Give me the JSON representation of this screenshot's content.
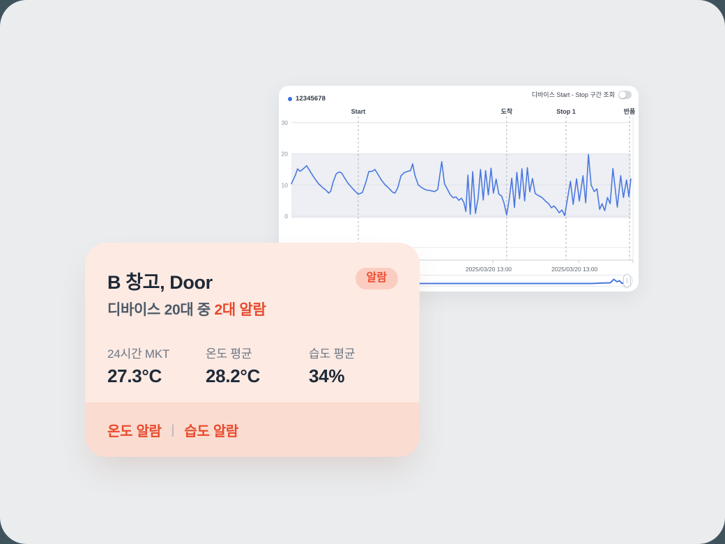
{
  "window": {
    "outer_bg": "#3F535D",
    "screen_bg": "#EAECEE"
  },
  "chart_panel": {
    "legend": {
      "label": "12345678",
      "dot_color": "#3C6BE0"
    },
    "toggle": {
      "label": "디바이스 Start - Stop 구간 조회",
      "state": "off"
    },
    "chart_data": {
      "type": "line",
      "y_ticks": [
        30,
        20,
        10,
        0
      ],
      "ylim": [
        -10,
        33
      ],
      "grid": "horizontal",
      "plot_band": {
        "from": 0,
        "to": 20,
        "color": "#EDEFF4"
      },
      "event_lines": [
        {
          "label": "Start",
          "x_pct": 19.7
        },
        {
          "label": "도착",
          "x_pct": 63.4
        },
        {
          "label": "Stop 1",
          "x_pct": 80.9
        },
        {
          "label": "반품",
          "x_pct": 99.6
        }
      ],
      "x_axis_labels": [
        {
          "text": "2025/03/20 13:00",
          "x_pct": 58.1
        },
        {
          "text": "2025/03/20 13:00",
          "x_pct": 83.4
        }
      ],
      "series": [
        {
          "name": "12345678",
          "color": "#4A78E0",
          "points": [
            [
              0,
              10.4
            ],
            [
              1.2,
              13.2
            ],
            [
              1.8,
              15.2
            ],
            [
              2.5,
              14.4
            ],
            [
              3.1,
              14.8
            ],
            [
              4.5,
              16.2
            ],
            [
              5.5,
              14.4
            ],
            [
              6.8,
              12.2
            ],
            [
              8,
              10.4
            ],
            [
              9.2,
              9.2
            ],
            [
              10.3,
              8.2
            ],
            [
              11,
              7.4
            ],
            [
              11.6,
              8.1
            ],
            [
              12.3,
              11
            ],
            [
              13.2,
              13.6
            ],
            [
              14,
              14.2
            ],
            [
              14.8,
              13.9
            ],
            [
              15.6,
              12.4
            ],
            [
              16.6,
              10.7
            ],
            [
              17.6,
              9.4
            ],
            [
              18.6,
              8.2
            ],
            [
              19.7,
              7
            ],
            [
              20.9,
              7.6
            ],
            [
              21.9,
              10.8
            ],
            [
              22.8,
              14.3
            ],
            [
              23.8,
              14.4
            ],
            [
              24.6,
              15
            ],
            [
              25.5,
              13.4
            ],
            [
              26.5,
              11.6
            ],
            [
              27.6,
              10.1
            ],
            [
              28.7,
              9
            ],
            [
              29.8,
              7.7
            ],
            [
              30.5,
              7.4
            ],
            [
              31.3,
              9
            ],
            [
              32.3,
              13
            ],
            [
              33.3,
              14
            ],
            [
              34.3,
              14.4
            ],
            [
              35.1,
              14.6
            ],
            [
              35.7,
              16.8
            ],
            [
              36.4,
              13
            ],
            [
              37.4,
              10
            ],
            [
              38.6,
              9
            ],
            [
              39.8,
              8.4
            ],
            [
              41,
              8.2
            ],
            [
              42.2,
              7.9
            ],
            [
              43.1,
              8.6
            ],
            [
              44.3,
              17.5
            ],
            [
              45.1,
              10.4
            ],
            [
              45.9,
              8.8
            ],
            [
              46.8,
              6.9
            ],
            [
              47.7,
              5.9
            ],
            [
              48.5,
              6.2
            ],
            [
              49.3,
              5.1
            ],
            [
              50.1,
              5.8
            ],
            [
              50.8,
              4.4
            ],
            [
              51.4,
              1.5
            ],
            [
              52,
              13.2
            ],
            [
              52.7,
              0.6
            ],
            [
              53.4,
              14.3
            ],
            [
              54.2,
              0.9
            ],
            [
              55,
              5.9
            ],
            [
              55.7,
              15
            ],
            [
              56.5,
              5.2
            ],
            [
              57.2,
              14.6
            ],
            [
              58,
              6.8
            ],
            [
              58.8,
              15.4
            ],
            [
              59.5,
              7.4
            ],
            [
              60.3,
              11.9
            ],
            [
              61.1,
              7.1
            ],
            [
              61.9,
              6.5
            ],
            [
              62.6,
              4.3
            ],
            [
              63.4,
              0.4
            ],
            [
              64.2,
              5.8
            ],
            [
              64.9,
              12.2
            ],
            [
              65.7,
              2.8
            ],
            [
              66.4,
              14.1
            ],
            [
              67.2,
              5.6
            ],
            [
              67.9,
              15.2
            ],
            [
              68.7,
              4.9
            ],
            [
              69.5,
              15.6
            ],
            [
              70.2,
              7.8
            ],
            [
              71,
              12.1
            ],
            [
              71.8,
              7.3
            ],
            [
              72.8,
              6.6
            ],
            [
              73.8,
              6
            ],
            [
              74.8,
              4.9
            ],
            [
              75.8,
              4
            ],
            [
              76.6,
              2.7
            ],
            [
              77.3,
              3.3
            ],
            [
              78.1,
              2.4
            ],
            [
              78.9,
              1.1
            ],
            [
              79.7,
              2
            ],
            [
              80.5,
              0.2
            ],
            [
              81.3,
              5.4
            ],
            [
              82.2,
              11.2
            ],
            [
              83,
              3.8
            ],
            [
              84,
              12
            ],
            [
              84.8,
              4.9
            ],
            [
              85.9,
              13
            ],
            [
              86.7,
              4.3
            ],
            [
              87.5,
              19.8
            ],
            [
              88.3,
              10
            ],
            [
              89.2,
              7.9
            ],
            [
              90,
              8.8
            ],
            [
              90.8,
              2.2
            ],
            [
              91.5,
              4
            ],
            [
              92.3,
              1.8
            ],
            [
              93.1,
              6
            ],
            [
              93.9,
              4
            ],
            [
              94.7,
              15.3
            ],
            [
              96,
              2.9
            ],
            [
              97,
              13
            ],
            [
              97.8,
              6
            ],
            [
              98.7,
              11.6
            ],
            [
              99.4,
              6.3
            ],
            [
              100,
              12
            ]
          ]
        }
      ],
      "navigator_profile": [
        [
          0,
          0
        ],
        [
          88,
          0
        ],
        [
          91,
          0.6
        ],
        [
          93.5,
          1
        ],
        [
          94.6,
          6
        ],
        [
          95.5,
          2.5
        ],
        [
          96.2,
          4
        ],
        [
          96.9,
          0.5
        ],
        [
          98.2,
          0
        ]
      ]
    }
  },
  "card": {
    "title": "B 창고, Door",
    "badge": "알람",
    "subtitle": {
      "prefix": "디바이스 20대 중 ",
      "highlight": "2대 알람"
    },
    "stats": [
      {
        "label": "24시간 MKT",
        "value": "27.3°C"
      },
      {
        "label": "온도 평균",
        "value": "28.2°C"
      },
      {
        "label": "습도 평균",
        "value": "34%"
      }
    ],
    "footer": {
      "alerts": [
        "온도 알람",
        "습도 알람"
      ],
      "separator": "|"
    },
    "colors": {
      "bg": "#FCEAE3",
      "footer_bg": "#FBDCD1",
      "badge_bg": "#FACDC0",
      "accent_red": "#E8492C",
      "title": "#1F2936",
      "label_gray": "#6B7684",
      "value_dark": "#1F2A38"
    }
  }
}
